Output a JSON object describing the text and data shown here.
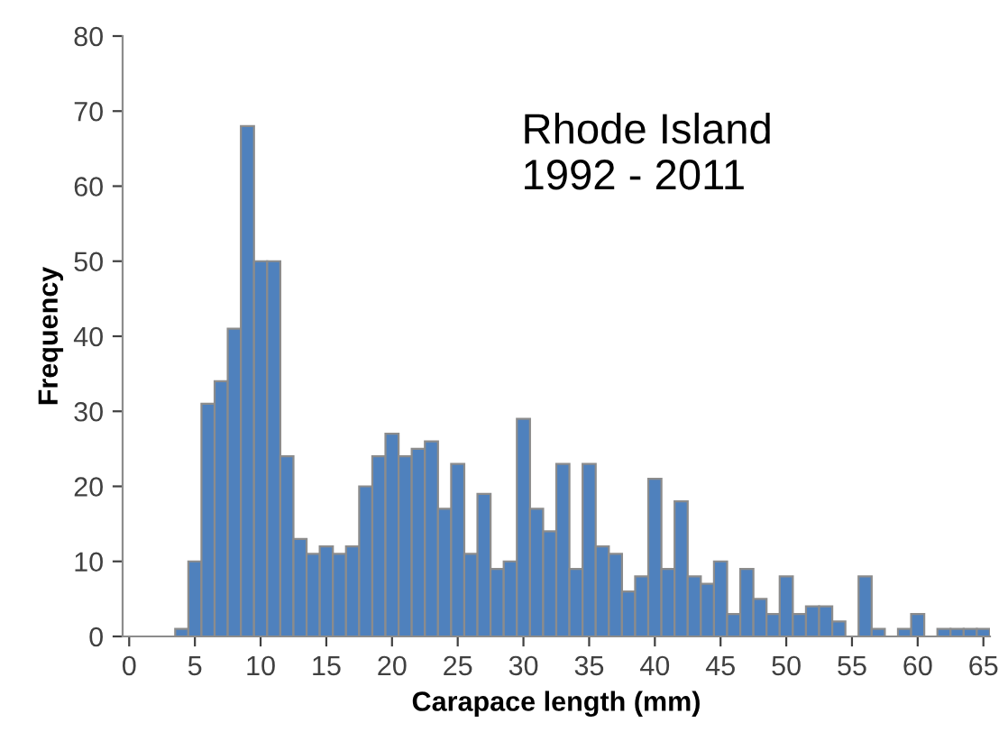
{
  "chart_data": {
    "type": "histogram",
    "xlabel": "Carapace length (mm)",
    "ylabel": "Frequency",
    "annotations": [
      "Rhode Island\n1992 - 2011"
    ],
    "bins": [
      -0.5,
      0.5,
      1.5,
      2.5,
      3.5,
      4.5,
      5.5,
      6.5,
      7.5,
      8.5,
      9.5,
      10.5,
      11.5,
      12.5,
      13.5,
      14.5,
      15.5,
      16.5,
      17.5,
      18.5,
      19.5,
      20.5,
      21.5,
      22.5,
      23.5,
      24.5,
      25.5,
      26.5,
      27.5,
      28.5,
      29.5,
      30.5,
      31.5,
      32.5,
      33.5,
      34.5,
      35.5,
      36.5,
      37.5,
      38.5,
      39.5,
      40.5,
      41.5,
      42.5,
      43.5,
      44.5,
      45.5,
      46.5,
      47.5,
      48.5,
      49.5,
      50.5,
      51.5,
      52.5,
      53.5,
      54.5,
      55.5,
      56.5,
      57.5,
      58.5,
      59.5,
      60.5,
      61.5,
      62.5,
      63.5,
      64.5,
      65.5
    ],
    "values": [
      0,
      0,
      0,
      0,
      1,
      10,
      31,
      34,
      41,
      68,
      50,
      50,
      24,
      13,
      11,
      12,
      11,
      12,
      20,
      24,
      27,
      24,
      25,
      26,
      17,
      23,
      11,
      19,
      9,
      10,
      29,
      17,
      14,
      23,
      9,
      23,
      12,
      11,
      6,
      8,
      21,
      9,
      18,
      8,
      7,
      10,
      3,
      9,
      5,
      3,
      8,
      3,
      4,
      4,
      2,
      0,
      8,
      1,
      0,
      1,
      3,
      0,
      1,
      1,
      1,
      1
    ],
    "color": "#4f81bd",
    "xlim": [
      -0.5,
      65.5
    ],
    "xticks": [
      0,
      5,
      10,
      15,
      20,
      25,
      30,
      35,
      40,
      45,
      50,
      55,
      60,
      65
    ],
    "ylim": [
      0,
      80
    ],
    "yticks": [
      0,
      10,
      20,
      30,
      40,
      50,
      60,
      70,
      80
    ],
    "grid": false
  }
}
